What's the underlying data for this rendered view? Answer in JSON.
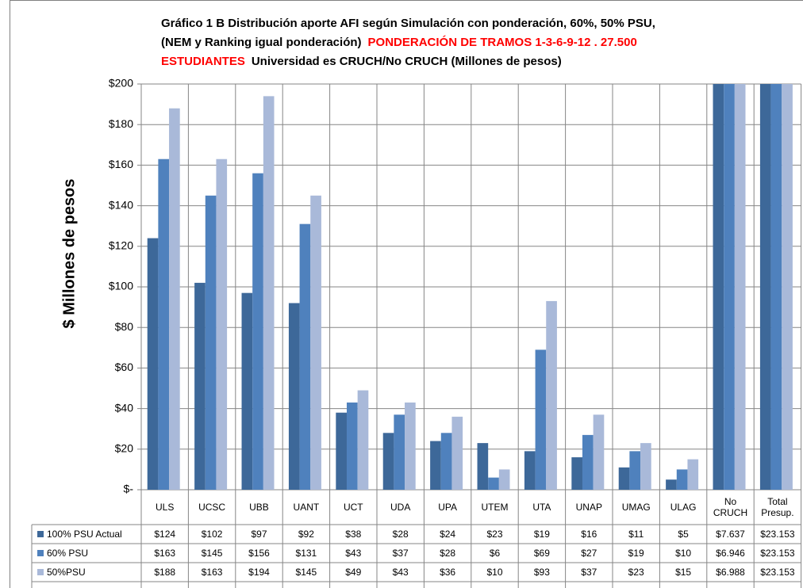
{
  "chart_data": {
    "type": "bar",
    "title": [
      [
        {
          "text": "Gráfico 1 B Distribución aporte AFI según Simulación con ponderación, 60%, 50% PSU,",
          "color": "#000000"
        }
      ],
      [
        {
          "text": "(NEM y Ranking igual ponderación)",
          "color": "#000000"
        },
        {
          "text": "PONDERACIÓN  DE TRAMOS 1-3-6-9-12 . 27.500",
          "color": "#ff0000"
        }
      ],
      [
        {
          "text": "ESTUDIANTES",
          "color": "#ff0000"
        },
        {
          "text": "Universidad es CRUCH/No CRUCH (Millones de pesos)",
          "color": "#000000"
        }
      ]
    ],
    "y_label": "$ Millones de pesos",
    "categories": [
      "ULS",
      "UCSC",
      "UBB",
      "UANT",
      "UCT",
      "UDA",
      "UPA",
      "UTEM",
      "UTA",
      "UNAP",
      "UMAG",
      "ULAG",
      "No CRUCH",
      "Total Presup."
    ],
    "series": [
      {
        "name": "100% PSU Actual",
        "color": "#3d6899",
        "values": [
          124,
          102,
          97,
          92,
          38,
          28,
          24,
          23,
          19,
          16,
          11,
          5,
          7637,
          23153
        ],
        "value_labels": [
          "$124",
          "$102",
          "$97",
          "$92",
          "$38",
          "$28",
          "$24",
          "$23",
          "$19",
          "$16",
          "$11",
          "$5",
          "$7.637",
          "$23.153"
        ]
      },
      {
        "name": "60% PSU",
        "color": "#4f81bd",
        "values": [
          163,
          145,
          156,
          131,
          43,
          37,
          28,
          6,
          69,
          27,
          19,
          10,
          6946,
          23153
        ],
        "value_labels": [
          "$163",
          "$145",
          "$156",
          "$131",
          "$43",
          "$37",
          "$28",
          "$6",
          "$69",
          "$27",
          "$19",
          "$10",
          "$6.946",
          "$23.153"
        ]
      },
      {
        "name": "50%PSU",
        "color": "#a9b9d9",
        "values": [
          188,
          163,
          194,
          145,
          49,
          43,
          36,
          10,
          93,
          37,
          23,
          15,
          6988,
          23153
        ],
        "value_labels": [
          "$188",
          "$163",
          "$194",
          "$145",
          "$49",
          "$43",
          "$36",
          "$10",
          "$93",
          "$37",
          "$23",
          "$15",
          "$6.988",
          "$23.153"
        ]
      }
    ],
    "ylim": [
      0,
      200
    ],
    "yticks": [
      {
        "value": 0,
        "label": "$-"
      },
      {
        "value": 20,
        "label": "$20"
      },
      {
        "value": 40,
        "label": "$40"
      },
      {
        "value": 60,
        "label": "$60"
      },
      {
        "value": 80,
        "label": "$80"
      },
      {
        "value": 100,
        "label": "$100"
      },
      {
        "value": 120,
        "label": "$120"
      },
      {
        "value": 140,
        "label": "$140"
      },
      {
        "value": 160,
        "label": "$160"
      },
      {
        "value": 180,
        "label": "$180"
      },
      {
        "value": 200,
        "label": "$200"
      }
    ],
    "grid": true
  }
}
